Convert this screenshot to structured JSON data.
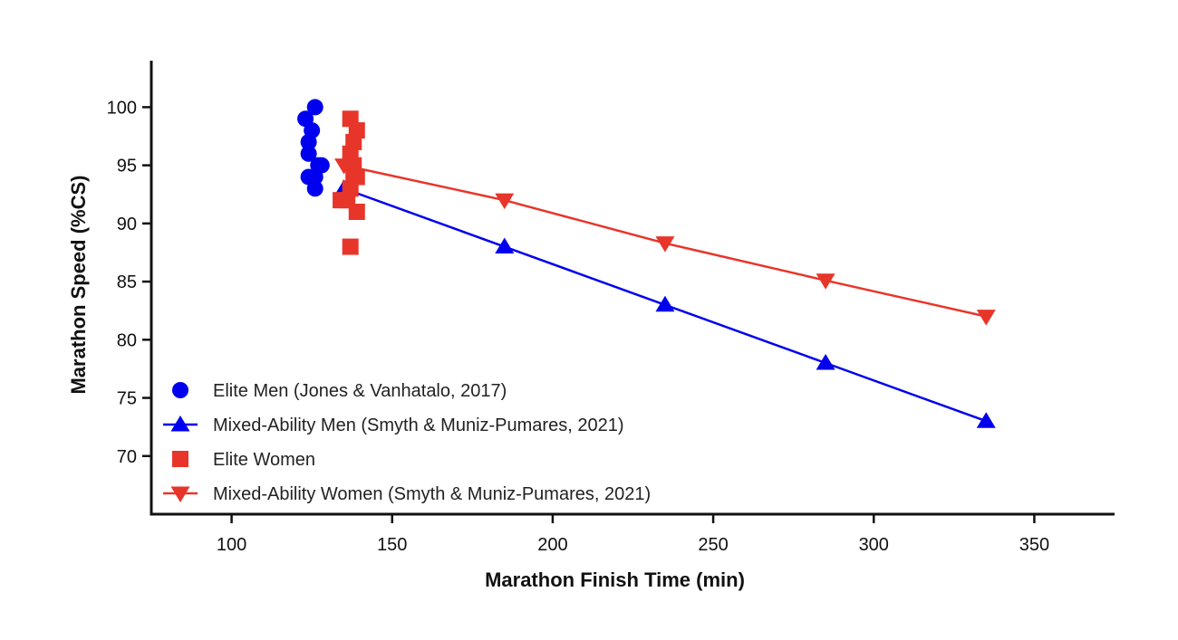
{
  "chart_data": {
    "type": "scatter",
    "xlabel": "Marathon Finish Time (min)",
    "ylabel": "Marathon Speed (%CS)",
    "xlim": [
      75,
      375
    ],
    "ylim": [
      65,
      104
    ],
    "xticks": [
      100,
      150,
      200,
      250,
      300,
      350
    ],
    "yticks": [
      70,
      75,
      80,
      85,
      90,
      95,
      100
    ],
    "grid": false,
    "legend_position": "bottom-left",
    "series": [
      {
        "name": "Elite Men (Jones & Vanhatalo, 2017)",
        "marker": "circle",
        "color": "#0000ee",
        "line": false,
        "points": [
          [
            126,
            100
          ],
          [
            125,
            98
          ],
          [
            123,
            99
          ],
          [
            124,
            97
          ],
          [
            124,
            96
          ],
          [
            127,
            95
          ],
          [
            128,
            95
          ],
          [
            124,
            94
          ],
          [
            126,
            94
          ],
          [
            126,
            93
          ]
        ]
      },
      {
        "name": "Mixed-Ability Men (Smyth & Muniz-Pumares, 2021)",
        "marker": "triangle-up",
        "color": "#0000ee",
        "line": true,
        "points": [
          [
            135,
            93
          ],
          [
            185,
            88
          ],
          [
            235,
            83
          ],
          [
            285,
            78
          ],
          [
            335,
            73
          ]
        ]
      },
      {
        "name": "Elite Women",
        "marker": "square",
        "color": "#e8352a",
        "line": false,
        "points": [
          [
            137,
            99
          ],
          [
            139,
            98
          ],
          [
            138,
            97
          ],
          [
            137,
            96
          ],
          [
            138,
            95
          ],
          [
            138,
            94
          ],
          [
            139,
            94
          ],
          [
            137,
            93
          ],
          [
            134,
            92
          ],
          [
            136,
            92
          ],
          [
            139,
            91
          ],
          [
            137,
            88
          ]
        ]
      },
      {
        "name": "Mixed-Ability Women (Smyth & Muniz-Pumares, 2021)",
        "marker": "triangle-down",
        "color": "#e8352a",
        "line": true,
        "points": [
          [
            135,
            95
          ],
          [
            185,
            92
          ],
          [
            235,
            88.3
          ],
          [
            285,
            85.1
          ],
          [
            335,
            82
          ]
        ]
      }
    ]
  }
}
